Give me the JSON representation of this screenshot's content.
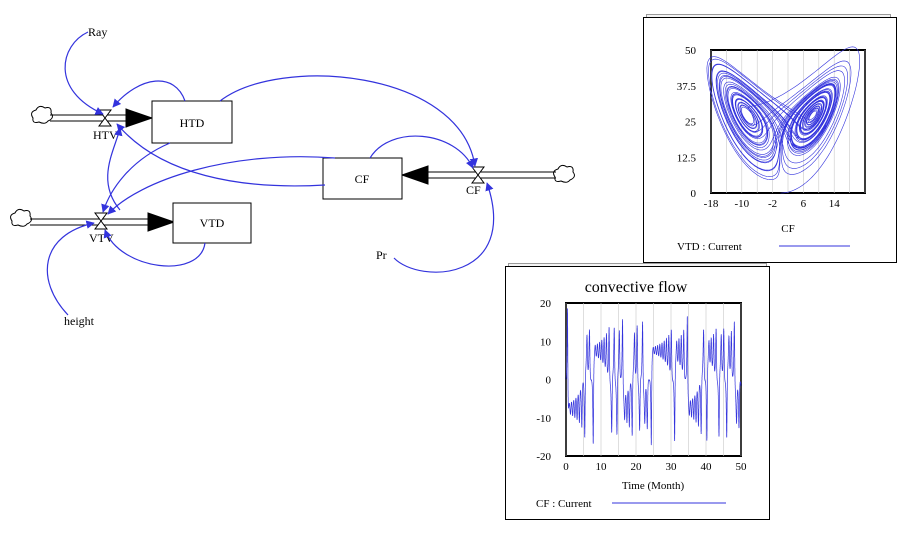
{
  "model": {
    "stocks": [
      {
        "id": "htd",
        "label": "HTD"
      },
      {
        "id": "cf",
        "label": "CF"
      },
      {
        "id": "vtd",
        "label": "VTD"
      }
    ],
    "flows": [
      {
        "id": "htv",
        "label": "HTV"
      },
      {
        "id": "cf_flow",
        "label": "CF"
      },
      {
        "id": "vtv",
        "label": "VTV"
      }
    ],
    "variables": {
      "ray": "Ray",
      "pr": "Pr",
      "height": "height"
    }
  },
  "colors": {
    "link": "#3333dd",
    "plot": "#3333dd",
    "ink": "#000000"
  },
  "chart_data": [
    {
      "type": "line",
      "title": "",
      "xlabel": "CF",
      "ylabel": "",
      "xlim": [
        -18,
        22
      ],
      "ylim": [
        0,
        50
      ],
      "x_ticks": [
        "-18",
        "-10",
        "-2",
        "6",
        "14"
      ],
      "y_ticks": [
        "50",
        "37.5",
        "25",
        "12.5",
        "0"
      ],
      "legend": "VTD : Current",
      "legend_position": "bottom",
      "grid": true,
      "series": [
        {
          "name": "VTD : Current",
          "description_type": "lorenz attractor phase plot"
        }
      ]
    },
    {
      "type": "line",
      "title": "convective flow",
      "xlabel": "Time (Month)",
      "ylabel": "",
      "xlim": [
        0,
        50
      ],
      "ylim": [
        -20,
        20
      ],
      "x_ticks": [
        "0",
        "10",
        "20",
        "30",
        "40",
        "50"
      ],
      "y_ticks": [
        "20",
        "10",
        "0",
        "-10",
        "-20"
      ],
      "legend": "CF : Current",
      "legend_position": "bottom",
      "grid": true,
      "series": [
        {
          "name": "CF : Current"
        }
      ]
    }
  ]
}
